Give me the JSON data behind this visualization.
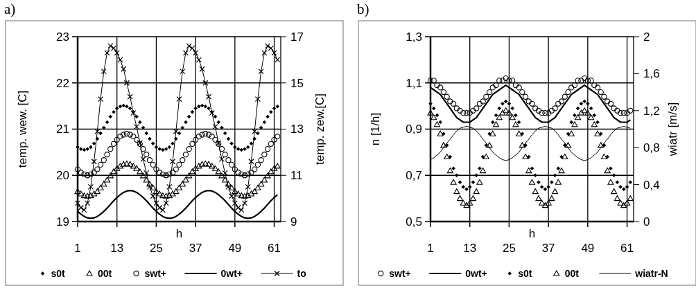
{
  "chart_data": [
    {
      "type": "scatter",
      "title": "a)",
      "xlabel": "h",
      "ylabel": "temp. wew. [C]",
      "y2label": "temp. zew.[C]",
      "x": [
        1,
        2,
        3,
        4,
        5,
        6,
        7,
        8,
        9,
        10,
        11,
        12,
        13,
        14,
        15,
        16,
        17,
        18,
        19,
        20,
        21,
        22,
        23,
        24,
        25,
        26,
        27,
        28,
        29,
        30,
        31,
        32,
        33,
        34,
        35,
        36,
        37,
        38,
        39,
        40,
        41,
        42,
        43,
        44,
        45,
        46,
        47,
        48,
        49,
        50,
        51,
        52,
        53,
        54,
        55,
        56,
        57,
        58,
        59,
        60,
        61,
        62
      ],
      "xlim": [
        1,
        63
      ],
      "xticks": [
        1,
        13,
        25,
        37,
        49,
        61
      ],
      "ylim": [
        19,
        23
      ],
      "yticks": [
        19,
        20,
        21,
        22,
        23
      ],
      "y2lim": [
        9,
        17
      ],
      "y2ticks": [
        9,
        11,
        13,
        15,
        17
      ],
      "grid": true,
      "legend": "bottom",
      "series": [
        {
          "name": "s0t",
          "marker": "diamond",
          "color": "#000000",
          "values": [
            20.61,
            20.57,
            20.55,
            20.57,
            20.61,
            20.69,
            20.79,
            20.91,
            21.03,
            21.15,
            21.27,
            21.37,
            21.45,
            21.49,
            21.51,
            21.49,
            21.45,
            21.37,
            21.27,
            21.15,
            21.03,
            20.91,
            20.79,
            20.69,
            20.61,
            20.57,
            20.55,
            20.57,
            20.61,
            20.69,
            20.79,
            20.91,
            21.03,
            21.15,
            21.27,
            21.37,
            21.45,
            21.49,
            21.51,
            21.49,
            21.45,
            21.37,
            21.27,
            21.15,
            21.03,
            20.91,
            20.79,
            20.69,
            20.61,
            20.57,
            20.55,
            20.57,
            20.61,
            20.69,
            20.79,
            20.91,
            21.03,
            21.15,
            21.27,
            21.37,
            21.45,
            21.49
          ]
        },
        {
          "name": "00t",
          "marker": "triangle",
          "color": "#000000",
          "values": [
            19.65,
            19.6,
            19.56,
            19.55,
            19.56,
            19.6,
            19.65,
            19.73,
            19.81,
            19.9,
            19.99,
            20.08,
            20.15,
            20.2,
            20.24,
            20.25,
            20.24,
            20.2,
            20.15,
            20.08,
            19.99,
            19.9,
            19.81,
            19.73,
            19.65,
            19.6,
            19.56,
            19.55,
            19.56,
            19.6,
            19.65,
            19.73,
            19.81,
            19.9,
            19.99,
            20.08,
            20.15,
            20.2,
            20.24,
            20.25,
            20.24,
            20.2,
            20.15,
            20.08,
            19.99,
            19.9,
            19.81,
            19.73,
            19.65,
            19.6,
            19.56,
            19.55,
            19.56,
            19.6,
            19.65,
            19.73,
            19.81,
            19.9,
            19.99,
            20.08,
            20.15,
            20.2
          ]
        },
        {
          "name": "swt+",
          "marker": "circle",
          "color": "#000000",
          "values": [
            20.13,
            20.06,
            20.02,
            20.0,
            20.02,
            20.06,
            20.13,
            20.23,
            20.33,
            20.45,
            20.57,
            20.68,
            20.77,
            20.84,
            20.88,
            20.9,
            20.88,
            20.84,
            20.77,
            20.68,
            20.57,
            20.45,
            20.33,
            20.23,
            20.13,
            20.06,
            20.02,
            20.0,
            20.02,
            20.06,
            20.13,
            20.23,
            20.33,
            20.45,
            20.57,
            20.68,
            20.77,
            20.84,
            20.88,
            20.9,
            20.88,
            20.84,
            20.77,
            20.68,
            20.57,
            20.45,
            20.33,
            20.23,
            20.13,
            20.06,
            20.02,
            20.0,
            20.02,
            20.06,
            20.13,
            20.23,
            20.33,
            20.45,
            20.57,
            20.68,
            20.77,
            20.84
          ]
        },
        {
          "name": "0wt+",
          "type": "line",
          "marker": "none",
          "color": "#000000",
          "values": [
            19.22,
            19.16,
            19.11,
            19.08,
            19.07,
            19.08,
            19.11,
            19.16,
            19.22,
            19.29,
            19.37,
            19.45,
            19.52,
            19.58,
            19.63,
            19.66,
            19.67,
            19.66,
            19.63,
            19.58,
            19.52,
            19.45,
            19.37,
            19.29,
            19.22,
            19.16,
            19.11,
            19.08,
            19.07,
            19.08,
            19.11,
            19.16,
            19.22,
            19.29,
            19.37,
            19.45,
            19.52,
            19.58,
            19.63,
            19.66,
            19.67,
            19.66,
            19.63,
            19.58,
            19.52,
            19.45,
            19.37,
            19.29,
            19.22,
            19.16,
            19.11,
            19.08,
            19.07,
            19.08,
            19.11,
            19.16,
            19.22,
            19.29,
            19.37,
            19.45,
            19.52,
            19.58
          ]
        },
        {
          "name": "to",
          "type": "line",
          "marker": "cross",
          "axis": "y2",
          "color": "#000000",
          "values": [
            9.8,
            9.6,
            9.5,
            9.8,
            10.5,
            11.6,
            12.9,
            14.3,
            15.5,
            16.3,
            16.6,
            16.5,
            16.3,
            16.0,
            15.6,
            15.0,
            14.4,
            13.7,
            13.1,
            12.4,
            11.7,
            11.1,
            10.5,
            10.1,
            9.8,
            9.6,
            9.5,
            9.8,
            10.5,
            11.6,
            12.9,
            14.3,
            15.5,
            16.3,
            16.6,
            16.5,
            16.3,
            16.0,
            15.6,
            15.0,
            14.4,
            13.7,
            13.1,
            12.4,
            11.7,
            11.1,
            10.5,
            10.1,
            9.8,
            9.6,
            9.5,
            9.8,
            10.5,
            11.6,
            12.9,
            14.3,
            15.5,
            16.3,
            16.6,
            16.5,
            16.3,
            16.0
          ]
        }
      ]
    },
    {
      "type": "scatter",
      "title": "b)",
      "xlabel": "h",
      "ylabel": "n [1/h]",
      "y2label": "wiatr [m/s]",
      "x": [
        1,
        2,
        3,
        4,
        5,
        6,
        7,
        8,
        9,
        10,
        11,
        12,
        13,
        14,
        15,
        16,
        17,
        18,
        19,
        20,
        21,
        22,
        23,
        24,
        25,
        26,
        27,
        28,
        29,
        30,
        31,
        32,
        33,
        34,
        35,
        36,
        37,
        38,
        39,
        40,
        41,
        42,
        43,
        44,
        45,
        46,
        47,
        48,
        49,
        50,
        51,
        52,
        53,
        54,
        55,
        56,
        57,
        58,
        59,
        60,
        61,
        62
      ],
      "xlim": [
        1,
        63
      ],
      "xticks": [
        1,
        13,
        25,
        37,
        49,
        61
      ],
      "ylim": [
        0.5,
        1.3
      ],
      "yticks": [
        {
          "value": 0.5,
          "label": "0,5"
        },
        {
          "value": 0.7,
          "label": "0,7"
        },
        {
          "value": 0.9,
          "label": "0,9"
        },
        {
          "value": 1.1,
          "label": "1,1"
        },
        {
          "value": 1.3,
          "label": "1,3"
        }
      ],
      "y2lim": [
        0,
        2
      ],
      "y2ticks": [
        0,
        {
          "value": 0.4,
          "label": "0,4"
        },
        {
          "value": 0.8,
          "label": "0,8"
        },
        {
          "value": 1.2,
          "label": "1,2"
        },
        {
          "value": 1.6,
          "label": "1,6"
        },
        2
      ],
      "grid": true,
      "legend": "bottom",
      "series": [
        {
          "name": "swt+",
          "marker": "circle",
          "color": "#000000",
          "values": [
            1.11,
            1.11,
            1.09,
            1.08,
            1.06,
            1.04,
            1.02,
            1.01,
            0.99,
            0.98,
            0.97,
            0.97,
            0.97,
            0.98,
            0.99,
            1.01,
            1.02,
            1.04,
            1.06,
            1.08,
            1.09,
            1.11,
            1.11,
            1.12,
            1.11,
            1.11,
            1.09,
            1.08,
            1.06,
            1.04,
            1.02,
            1.01,
            0.99,
            0.98,
            0.97,
            0.97,
            0.97,
            0.98,
            0.99,
            1.01,
            1.02,
            1.04,
            1.06,
            1.08,
            1.09,
            1.11,
            1.11,
            1.12,
            1.11,
            1.11,
            1.09,
            1.08,
            1.06,
            1.04,
            1.02,
            1.01,
            0.99,
            0.98,
            0.97,
            0.97,
            0.97,
            0.98
          ]
        },
        {
          "name": "0wt+",
          "type": "line",
          "marker": "none",
          "color": "#000000",
          "values": [
            1.08,
            1.07,
            1.06,
            1.05,
            1.03,
            1.01,
            0.99,
            0.97,
            0.95,
            0.94,
            0.93,
            0.93,
            0.93,
            0.94,
            0.95,
            0.97,
            0.99,
            1.01,
            1.03,
            1.05,
            1.06,
            1.07,
            1.08,
            1.09,
            1.08,
            1.07,
            1.06,
            1.05,
            1.03,
            1.01,
            0.99,
            0.97,
            0.95,
            0.94,
            0.93,
            0.93,
            0.93,
            0.94,
            0.95,
            0.97,
            0.99,
            1.01,
            1.03,
            1.05,
            1.06,
            1.07,
            1.08,
            1.09,
            1.08,
            1.07,
            1.06,
            1.05,
            1.03,
            1.01,
            0.99,
            0.97,
            0.95,
            0.94,
            0.93,
            0.93,
            0.93,
            0.94
          ]
        },
        {
          "name": "s0t",
          "marker": "diamond",
          "color": "#000000",
          "values": [
            1.01,
            0.99,
            0.96,
            0.93,
            0.88,
            0.83,
            0.78,
            0.73,
            0.7,
            0.67,
            0.65,
            0.64,
            0.65,
            0.67,
            0.7,
            0.73,
            0.78,
            0.83,
            0.88,
            0.93,
            0.96,
            0.99,
            1.01,
            1.02,
            1.01,
            0.99,
            0.96,
            0.93,
            0.88,
            0.83,
            0.78,
            0.73,
            0.7,
            0.67,
            0.65,
            0.64,
            0.65,
            0.67,
            0.7,
            0.73,
            0.78,
            0.83,
            0.88,
            0.93,
            0.96,
            0.99,
            1.01,
            1.02,
            1.01,
            0.99,
            0.96,
            0.93,
            0.88,
            0.83,
            0.78,
            0.73,
            0.7,
            0.67,
            0.65,
            0.64,
            0.65,
            0.67
          ]
        },
        {
          "name": "00t",
          "marker": "triangle",
          "color": "#000000",
          "values": [
            0.97,
            0.95,
            0.92,
            0.88,
            0.83,
            0.78,
            0.72,
            0.67,
            0.63,
            0.6,
            0.58,
            0.57,
            0.58,
            0.6,
            0.63,
            0.67,
            0.72,
            0.78,
            0.83,
            0.88,
            0.92,
            0.95,
            0.97,
            0.98,
            0.97,
            0.95,
            0.92,
            0.88,
            0.83,
            0.78,
            0.72,
            0.67,
            0.63,
            0.6,
            0.58,
            0.57,
            0.58,
            0.6,
            0.63,
            0.67,
            0.72,
            0.78,
            0.83,
            0.88,
            0.92,
            0.95,
            0.97,
            0.98,
            0.97,
            0.95,
            0.92,
            0.88,
            0.83,
            0.78,
            0.72,
            0.67,
            0.63,
            0.6,
            0.58,
            0.57,
            0.58,
            0.6
          ]
        },
        {
          "name": "wiatr-N",
          "type": "line",
          "marker": "none",
          "axis": "y2",
          "color": "#000000",
          "values": [
            0.67,
            0.69,
            0.72,
            0.75,
            0.8,
            0.85,
            0.89,
            0.94,
            0.98,
            1.01,
            1.02,
            1.03,
            1.02,
            1.01,
            0.98,
            0.94,
            0.89,
            0.85,
            0.8,
            0.75,
            0.72,
            0.69,
            0.67,
            0.66,
            0.67,
            0.69,
            0.72,
            0.75,
            0.8,
            0.85,
            0.89,
            0.94,
            0.98,
            1.01,
            1.02,
            1.03,
            1.02,
            1.01,
            0.98,
            0.94,
            0.89,
            0.85,
            0.8,
            0.75,
            0.72,
            0.69,
            0.67,
            0.66,
            0.67,
            0.69,
            0.72,
            0.75,
            0.8,
            0.85,
            0.89,
            0.94,
            0.98,
            1.01,
            1.02,
            1.03,
            1.02,
            1.01
          ]
        }
      ]
    }
  ]
}
